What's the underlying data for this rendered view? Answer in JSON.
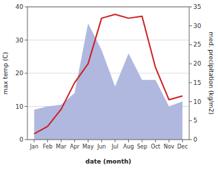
{
  "chart_data": {
    "type": "line",
    "categories": [
      "Jan",
      "Feb",
      "Mar",
      "Apr",
      "May",
      "Jun",
      "Jul",
      "Aug",
      "Sep",
      "Oct",
      "Nov",
      "Dec"
    ],
    "series": [
      {
        "type": "area",
        "color": "#b0b8e0",
        "values": [
          9.0,
          10.0,
          10.5,
          14.0,
          35.0,
          27.0,
          16.0,
          26.0,
          18.0,
          18.0,
          10.0,
          11.5
        ]
      },
      {
        "type": "line",
        "color": "#cc2222",
        "axis": "y2",
        "values": [
          1.5,
          3.5,
          8.0,
          15.0,
          20.0,
          32.0,
          33.0,
          32.0,
          32.5,
          19.0,
          10.5,
          11.5
        ]
      }
    ],
    "xlabel": "date (month)",
    "ylabel": "max temp (C)",
    "y2label": "med. precipitation (kg/m2)",
    "ylim": [
      0,
      40
    ],
    "yticks": [
      0,
      10,
      20,
      30,
      40
    ],
    "y2lim": [
      0,
      35
    ],
    "y2ticks": [
      0,
      5,
      10,
      15,
      20,
      25,
      30,
      35
    ],
    "grid": true
  }
}
